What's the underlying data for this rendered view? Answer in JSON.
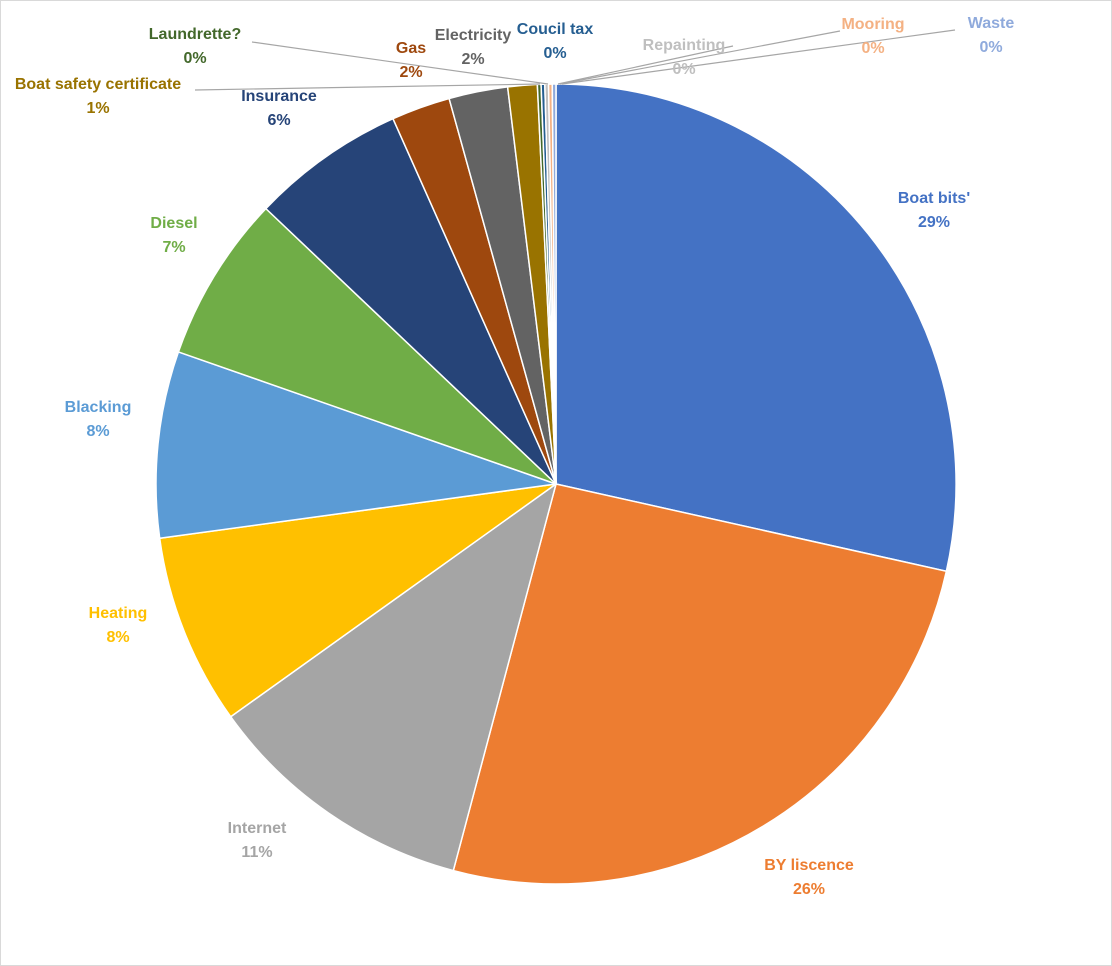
{
  "chart_data": {
    "type": "pie",
    "slices": [
      {
        "label": "Boat bits'",
        "value": 29,
        "pct_label": "29%",
        "color": "#4472C4",
        "label_color": "#4472C4"
      },
      {
        "label": "BY liscence",
        "value": 26,
        "pct_label": "26%",
        "color": "#ED7D31",
        "label_color": "#ED7D31"
      },
      {
        "label": "Internet",
        "value": 11,
        "pct_label": "11%",
        "color": "#A5A5A5",
        "label_color": "#A5A5A5"
      },
      {
        "label": "Heating",
        "value": 8,
        "pct_label": "8%",
        "color": "#FFC000",
        "label_color": "#FFC000"
      },
      {
        "label": "Blacking",
        "value": 8,
        "pct_label": "8%",
        "color": "#5B9BD5",
        "label_color": "#5B9BD5"
      },
      {
        "label": "Diesel",
        "value": 7,
        "pct_label": "7%",
        "color": "#70AD47",
        "label_color": "#70AD47"
      },
      {
        "label": "Insurance",
        "value": 6,
        "pct_label": "6%",
        "color": "#264478",
        "label_color": "#264478"
      },
      {
        "label": "Gas",
        "value": 2,
        "pct_label": "2%",
        "color": "#9E480E",
        "label_color": "#9E480E"
      },
      {
        "label": "Electricity",
        "value": 2,
        "pct_label": "2%",
        "color": "#636363",
        "label_color": "#636363"
      },
      {
        "label": "Boat safety certificate",
        "value": 1,
        "pct_label": "1%",
        "color": "#997300",
        "label_color": "#997300"
      },
      {
        "label": "Laundrette?",
        "value": 0,
        "pct_label": "0%",
        "color": "#43682B",
        "label_color": "#43682B"
      },
      {
        "label": "Coucil tax",
        "value": 0,
        "pct_label": "0%",
        "color": "#255E91",
        "label_color": "#255E91"
      },
      {
        "label": "Repainting",
        "value": 0,
        "pct_label": "0%",
        "color": "#BFBFBF",
        "label_color": "#BFBFBF"
      },
      {
        "label": "Mooring",
        "value": 0,
        "pct_label": "0%",
        "color": "#F4B183",
        "label_color": "#F4B183"
      },
      {
        "label": "Waste",
        "value": 0,
        "pct_label": "0%",
        "color": "#8FAADC",
        "label_color": "#8FAADC"
      }
    ],
    "title": "",
    "legend": "none",
    "start_angle_deg": 0,
    "direction": "clockwise",
    "data_labels": "category and percentage"
  }
}
